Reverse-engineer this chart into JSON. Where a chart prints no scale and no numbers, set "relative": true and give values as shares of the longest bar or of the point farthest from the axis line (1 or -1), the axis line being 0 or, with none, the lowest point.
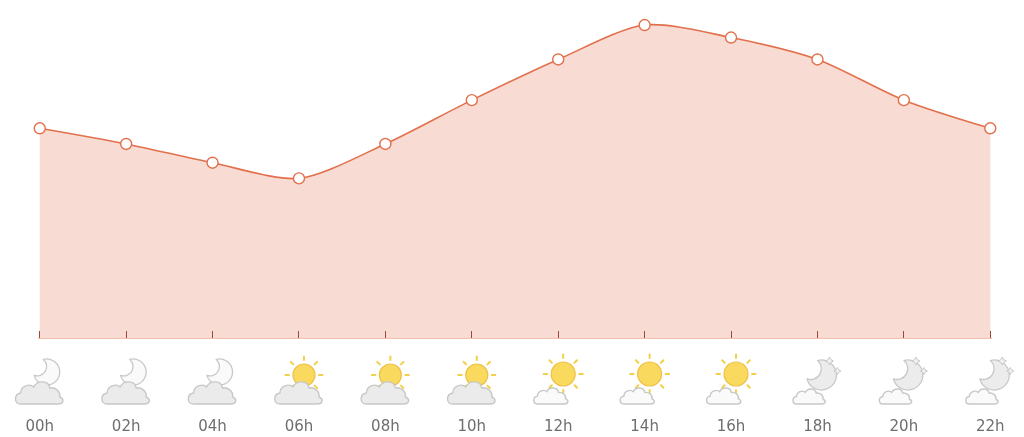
{
  "chart_data": {
    "type": "area",
    "categories": [
      "00h",
      "02h",
      "04h",
      "06h",
      "08h",
      "10h",
      "12h",
      "14h",
      "16h",
      "18h",
      "20h",
      "22h"
    ],
    "relative": true,
    "values": [
      0.67,
      0.62,
      0.56,
      0.51,
      0.62,
      0.76,
      0.89,
      1,
      0.96,
      0.89,
      0.76,
      0.67
    ],
    "color": "#e2704c",
    "marker": "circle",
    "line_style": "solid"
  }
}
